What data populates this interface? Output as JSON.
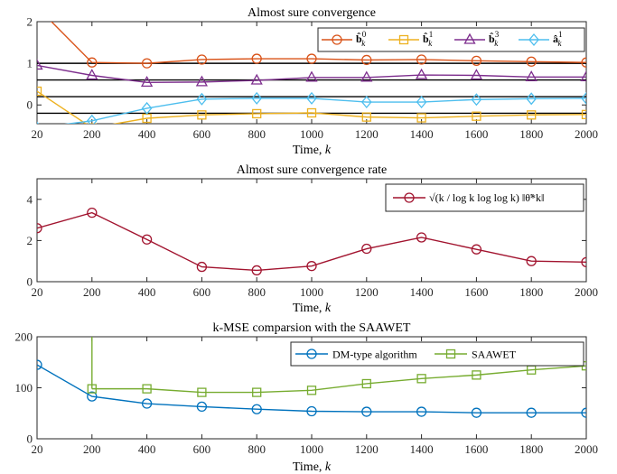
{
  "colors": {
    "orange": "#D95319",
    "yellow": "#EDB120",
    "purple": "#7E2F8E",
    "cyan": "#4DBEEE",
    "crimson": "#A2142F",
    "blue": "#0072BD",
    "green": "#77AC30"
  },
  "chart_data": [
    {
      "type": "line",
      "title": "Almost sure convergence",
      "xlabel": "Time, k",
      "ylabel": "",
      "x": [
        20,
        200,
        400,
        600,
        800,
        1000,
        1200,
        1400,
        1600,
        1800,
        2000
      ],
      "x_tick_labels": [
        "20",
        "200",
        "400",
        "600",
        "800",
        "1000",
        "1200",
        "1400",
        "1600",
        "1800",
        "2000"
      ],
      "y_ticks": [
        0,
        1,
        2
      ],
      "ylim": [
        -0.45,
        2
      ],
      "reference_lines": [
        1,
        0.6,
        0.2,
        -0.2
      ],
      "legend_position": "top-right",
      "series": [
        {
          "name": "b̂_k^0",
          "legend_label": "b̂",
          "sup": "0",
          "sub": "k",
          "color_key": "orange",
          "marker": "circle",
          "y": [
            2.35,
            1.02,
            1.0,
            1.09,
            1.11,
            1.11,
            1.08,
            1.09,
            1.06,
            1.04,
            1.02
          ]
        },
        {
          "name": "b̂_k^1",
          "legend_label": "b̂",
          "sup": "1",
          "sub": "k",
          "color_key": "yellow",
          "marker": "square",
          "y": [
            0.33,
            -0.55,
            -0.32,
            -0.24,
            -0.21,
            -0.19,
            -0.29,
            -0.31,
            -0.27,
            -0.24,
            -0.23
          ]
        },
        {
          "name": "b̂_k^3",
          "legend_label": "b̂",
          "sup": "3",
          "sub": "k",
          "color_key": "purple",
          "marker": "triangle",
          "y": [
            0.95,
            0.71,
            0.54,
            0.55,
            0.59,
            0.66,
            0.66,
            0.72,
            0.71,
            0.67,
            0.67
          ]
        },
        {
          "name": "â_k^1",
          "legend_label": "â",
          "sup": "1",
          "sub": "k",
          "color_key": "cyan",
          "marker": "diamond",
          "y": [
            -0.55,
            -0.38,
            -0.08,
            0.14,
            0.16,
            0.16,
            0.07,
            0.07,
            0.13,
            0.15,
            0.16
          ]
        }
      ]
    },
    {
      "type": "line",
      "title": "Almost sure convergence rate",
      "xlabel": "Time, k",
      "ylabel": "",
      "x": [
        20,
        200,
        400,
        600,
        800,
        1000,
        1200,
        1400,
        1600,
        1800,
        2000
      ],
      "x_tick_labels": [
        "20",
        "200",
        "400",
        "600",
        "800",
        "1000",
        "1200",
        "1400",
        "1600",
        "1800",
        "2000"
      ],
      "y_ticks": [
        0,
        2,
        4
      ],
      "ylim": [
        0,
        5
      ],
      "legend_position": "top-right",
      "series": [
        {
          "name": "√(k/log k log log k) ‖θ̃*_k‖",
          "legend_label": "√(k / log k log log k) ‖θ̃*k‖",
          "color_key": "crimson",
          "marker": "circle",
          "y": [
            2.6,
            3.35,
            2.05,
            0.72,
            0.55,
            0.76,
            1.6,
            2.15,
            1.57,
            1.0,
            0.95
          ]
        }
      ]
    },
    {
      "type": "line",
      "title": "k-MSE comparsion with the SAAWET",
      "xlabel": "Time, k",
      "ylabel": "",
      "x": [
        20,
        200,
        400,
        600,
        800,
        1000,
        1200,
        1400,
        1600,
        1800,
        2000
      ],
      "x_tick_labels": [
        "20",
        "200",
        "400",
        "600",
        "800",
        "1000",
        "1200",
        "1400",
        "1600",
        "1800",
        "2000"
      ],
      "y_ticks": [
        0,
        100,
        200
      ],
      "ylim": [
        0,
        200
      ],
      "legend_position": "top-right",
      "series": [
        {
          "name": "DM-type algorithm",
          "legend_label": "DM-type algorithm",
          "color_key": "blue",
          "marker": "circle",
          "y": [
            145,
            83,
            69,
            63,
            58,
            54,
            53,
            53,
            51,
            51,
            51
          ]
        },
        {
          "name": "SAAWET",
          "legend_label": "SAAWET",
          "color_key": "green",
          "marker": "square",
          "y": [
            null,
            98,
            98,
            91,
            91,
            95,
            108,
            118,
            125,
            135,
            143
          ],
          "spike_at_x": 200,
          "spike_from": 98
        }
      ]
    }
  ]
}
